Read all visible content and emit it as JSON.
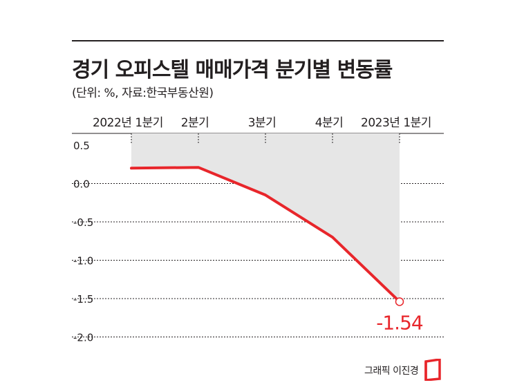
{
  "header": {
    "title": "경기 오피스텔 매매가격 분기별 변동률",
    "subtitle": "(단위: %, 자료:한국부동산원)"
  },
  "credit": "그래픽 이진경",
  "colors": {
    "line": "#e8262b",
    "area": "#e6e6e6",
    "text": "#231f20",
    "gridline": "#231f20"
  },
  "chart_data": {
    "type": "line",
    "categories": [
      "2022년 1분기",
      "2분기",
      "3분기",
      "4분기",
      "2023년 1분기"
    ],
    "values": [
      0.2,
      0.21,
      -0.15,
      -0.7,
      -1.54
    ],
    "ylim": [
      -2.0,
      0.5
    ],
    "yticks": [
      "0.5",
      "0.0",
      "-0.5",
      "-1.0",
      "-1.5",
      "-2.0"
    ],
    "area_fill": true,
    "grid": "horizontal",
    "annotations": [
      {
        "category": "2023년 1분기",
        "label": "-1.54"
      }
    ]
  }
}
